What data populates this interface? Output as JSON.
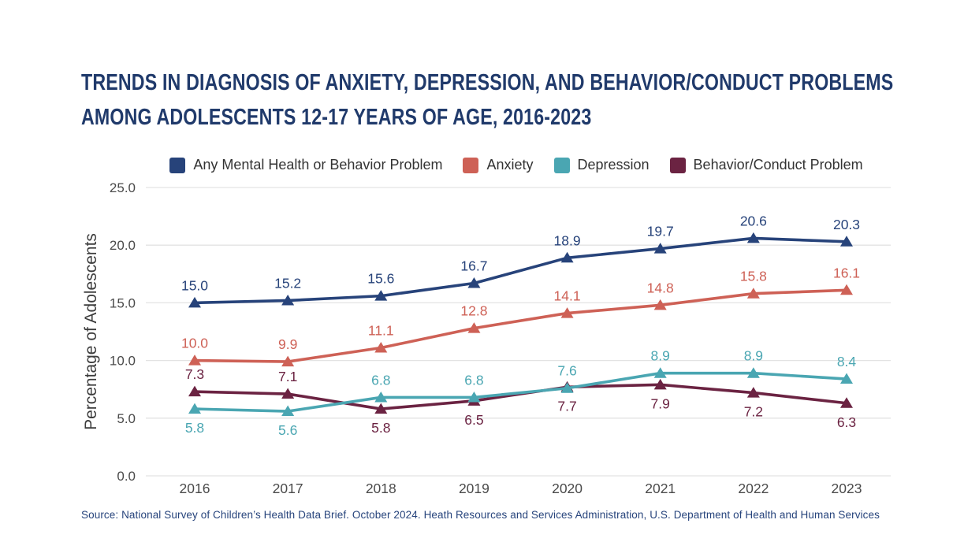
{
  "page": {
    "title_line1": "TRENDS IN DIAGNOSIS OF ANXIETY, DEPRESSION, AND BEHAVIOR/CONDUCT PROBLEMS",
    "title_line2": "AMONG ADOLESCENTS 12-17 YEARS OF AGE, 2016-2023",
    "source": "Source: National Survey of Children’s Health Data Brief. October 2024. Heath Resources and Services Administration, U.S. Department of Health and Human Services"
  },
  "colors": {
    "title": "#203A6B",
    "axis_text": "#4A4A4A",
    "axis_title": "#3C3C3C",
    "grid": "#E3E3E3",
    "legend_text": "#333333",
    "background": "#FFFFFF",
    "source_text": "#27447C"
  },
  "chart_data": {
    "type": "line",
    "title": "TRENDS IN DIAGNOSIS OF ANXIETY, DEPRESSION, AND BEHAVIOR/CONDUCT PROBLEMS AMONG ADOLESCENTS 12-17 YEARS OF AGE, 2016-2023",
    "x": [
      "2016",
      "2017",
      "2018",
      "2019",
      "2020",
      "2021",
      "2022",
      "2023"
    ],
    "xlabel": "",
    "ylabel": "Percentage of Adolescents",
    "ylim": [
      0,
      25
    ],
    "yticks": [
      0,
      5,
      10,
      15,
      20,
      25
    ],
    "ytick_labels": [
      "0.0",
      "5.0",
      "10.0",
      "15.0",
      "20.0",
      "25.0"
    ],
    "grid": true,
    "legend_position": "top",
    "marker": "triangle-up",
    "series": [
      {
        "name": "Any Mental Health or Behavior Problem",
        "color": "#27437A",
        "values": [
          15.0,
          15.2,
          15.6,
          16.7,
          18.9,
          19.7,
          20.6,
          20.3
        ],
        "label_positions": [
          "above",
          "above",
          "above",
          "above",
          "above",
          "above",
          "above",
          "above"
        ]
      },
      {
        "name": "Anxiety",
        "color": "#CE6156",
        "values": [
          10.0,
          9.9,
          11.1,
          12.8,
          14.1,
          14.8,
          15.8,
          16.1
        ],
        "label_positions": [
          "above",
          "above",
          "above",
          "above",
          "above",
          "above",
          "above",
          "above"
        ]
      },
      {
        "name": "Depression",
        "color": "#4AA6B2",
        "values": [
          5.8,
          5.6,
          6.8,
          6.8,
          7.6,
          8.9,
          8.9,
          8.4
        ],
        "label_positions": [
          "below",
          "below",
          "above",
          "above",
          "above",
          "above",
          "above",
          "above"
        ]
      },
      {
        "name": "Behavior/Conduct Problem",
        "color": "#6B2342",
        "values": [
          7.3,
          7.1,
          5.8,
          6.5,
          7.7,
          7.9,
          7.2,
          6.3
        ],
        "label_positions": [
          "above",
          "above",
          "below",
          "below",
          "below",
          "below",
          "below",
          "below"
        ]
      }
    ]
  }
}
